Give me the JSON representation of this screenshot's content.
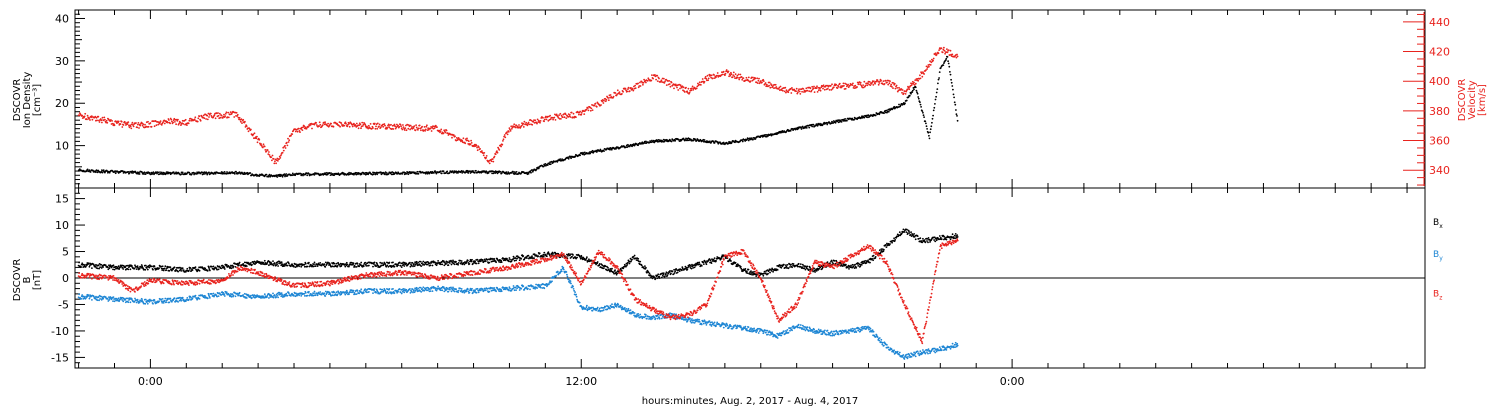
{
  "figure": {
    "xlabel": "hours:minutes, Aug.  2, 2017 - Aug.  4, 2017",
    "x_ticks": [
      "0:00",
      "12:00",
      "0:00"
    ],
    "colors": {
      "black": "#000000",
      "red": "#e8231e",
      "blue": "#1e86d4"
    }
  },
  "chart_data": [
    {
      "type": "scatter",
      "panel": "plasma",
      "ylabel_left": [
        "DSCOVR",
        "Ion Density",
        "[cm⁻³]"
      ],
      "ylabel_right": [
        "DSCOVR",
        "Velocity",
        "[km/s]"
      ],
      "x_unit": "hours since Aug. 2 00:00",
      "xlim": [
        -2.1,
        35.5
      ],
      "y_left_lim": [
        0,
        42
      ],
      "y_left_ticks": [
        "10",
        "20",
        "30",
        "40"
      ],
      "y_right_lim": [
        328,
        448
      ],
      "y_right_ticks": [
        "340",
        "360",
        "380",
        "400",
        "420",
        "440"
      ],
      "series": [
        {
          "axis": "left",
          "color": "black",
          "x": [
            -2,
            -1,
            0,
            1,
            2,
            2.5,
            3,
            3.5,
            4,
            5,
            6,
            7,
            8,
            9,
            10,
            10.5,
            11,
            11.2,
            12,
            13,
            14,
            15,
            16,
            17,
            18,
            19,
            20,
            20.5,
            21,
            21.3,
            21.7,
            22,
            22.2,
            22.5
          ],
          "y": [
            4.2,
            3.8,
            3.5,
            3.4,
            3.5,
            3.6,
            3.0,
            2.8,
            3.2,
            3.3,
            3.4,
            3.5,
            3.7,
            3.8,
            3.6,
            3.5,
            5.5,
            6.0,
            8.0,
            9.5,
            11.0,
            11.5,
            10.5,
            12.0,
            14.0,
            15.5,
            17.0,
            18.0,
            20.0,
            24.0,
            12.0,
            28.0,
            31.0,
            15.0
          ]
        },
        {
          "axis": "right",
          "color": "red",
          "x": [
            -2,
            -1.5,
            -1,
            -0.5,
            0,
            0.5,
            1,
            1.5,
            2,
            2.4,
            3.5,
            3.8,
            4,
            4.5,
            5,
            6,
            7,
            8,
            8.5,
            9,
            9.5,
            10,
            11,
            12,
            12.5,
            13,
            13.5,
            14,
            14.5,
            15,
            15.5,
            16,
            16.5,
            17,
            17.5,
            18,
            19,
            20,
            20.5,
            21,
            21.5,
            22,
            22.5
          ],
          "y": [
            377,
            375,
            372,
            370,
            371,
            373,
            372,
            376,
            377,
            378,
            345,
            358,
            366,
            370,
            371,
            370,
            369,
            368,
            362,
            358,
            345,
            368,
            375,
            378,
            385,
            392,
            396,
            403,
            398,
            393,
            402,
            406,
            402,
            400,
            395,
            393,
            396,
            398,
            400,
            392,
            405,
            422,
            416
          ]
        }
      ]
    },
    {
      "type": "scatter",
      "panel": "magnetic",
      "ylabel_left": [
        "DSCOVR",
        "B",
        "[nT]"
      ],
      "x_unit": "hours since Aug. 2 00:00",
      "xlim": [
        -2.1,
        35.5
      ],
      "ylim": [
        -17,
        17
      ],
      "y_ticks": [
        "-15",
        "-10",
        "-5",
        "0",
        "5",
        "10",
        "15"
      ],
      "legend": [
        {
          "label": "B",
          "sub": "x",
          "color": "black"
        },
        {
          "label": "B",
          "sub": "y",
          "color": "blue"
        },
        {
          "label": "B",
          "sub": "z",
          "color": "red"
        }
      ],
      "series": [
        {
          "name": "Bx",
          "color": "black",
          "x": [
            -2,
            -1,
            0,
            1,
            2,
            3,
            4,
            5,
            6,
            7,
            8,
            9,
            10,
            10.5,
            11,
            12,
            12.5,
            13,
            13.5,
            14,
            14.5,
            15,
            15.5,
            16,
            16.5,
            17,
            17.5,
            18,
            18.5,
            19,
            19.5,
            20,
            20.5,
            21,
            21.5,
            22,
            22.5
          ],
          "y": [
            2.5,
            2.0,
            2.0,
            1.5,
            2.0,
            3.0,
            2.5,
            2.5,
            2.5,
            2.5,
            2.8,
            3.0,
            3.5,
            4.0,
            4.5,
            4.0,
            2.5,
            1.0,
            4.0,
            0.0,
            1.0,
            2.0,
            3.0,
            4.0,
            1.5,
            0.5,
            2.0,
            2.5,
            1.5,
            3.0,
            2.0,
            3.0,
            6.0,
            9.0,
            7.0,
            7.5,
            8.0
          ]
        },
        {
          "name": "By",
          "color": "blue",
          "x": [
            -2,
            -1,
            0,
            1,
            2,
            3,
            4,
            5,
            6,
            7,
            8,
            9,
            10,
            11,
            11.5,
            12,
            12.5,
            13,
            13.5,
            14,
            14.5,
            15,
            15.5,
            16,
            16.5,
            17,
            17.5,
            18,
            18.5,
            19,
            19.5,
            20,
            20.5,
            21,
            21.5,
            22,
            22.5
          ],
          "y": [
            -3.5,
            -4.0,
            -4.5,
            -4.0,
            -3.0,
            -3.5,
            -3.0,
            -3.0,
            -2.5,
            -2.5,
            -2.0,
            -2.5,
            -2.0,
            -1.5,
            2.0,
            -5.5,
            -6.0,
            -5.0,
            -7.0,
            -7.5,
            -7.0,
            -8.0,
            -8.5,
            -9.0,
            -9.5,
            -10.0,
            -11.0,
            -9.0,
            -10.0,
            -10.5,
            -10.0,
            -9.5,
            -13.0,
            -15.0,
            -14.0,
            -13.5,
            -12.5
          ]
        },
        {
          "name": "Bz",
          "color": "red",
          "x": [
            -2,
            -1,
            -0.5,
            0,
            1,
            2,
            2.5,
            3,
            4,
            5,
            6,
            7,
            8,
            9,
            10,
            11,
            11.5,
            12,
            12.5,
            13,
            13.5,
            14,
            14.5,
            15,
            15.5,
            16,
            16.5,
            17,
            17.5,
            18,
            18.5,
            19,
            19.5,
            20,
            20.5,
            21,
            21.5,
            22,
            22.5
          ],
          "y": [
            0.5,
            0.0,
            -2.5,
            -0.5,
            -1.0,
            -0.5,
            2.0,
            1.0,
            -1.5,
            -1.0,
            0.5,
            1.0,
            0.0,
            1.0,
            2.0,
            3.5,
            4.5,
            -1.0,
            5.0,
            2.0,
            -4.0,
            -6.0,
            -7.5,
            -7.0,
            -5.0,
            4.0,
            5.0,
            0.0,
            -8.0,
            -5.0,
            3.0,
            2.0,
            4.0,
            6.0,
            3.0,
            -5.0,
            -12.0,
            6.0,
            7.0
          ]
        }
      ]
    }
  ]
}
